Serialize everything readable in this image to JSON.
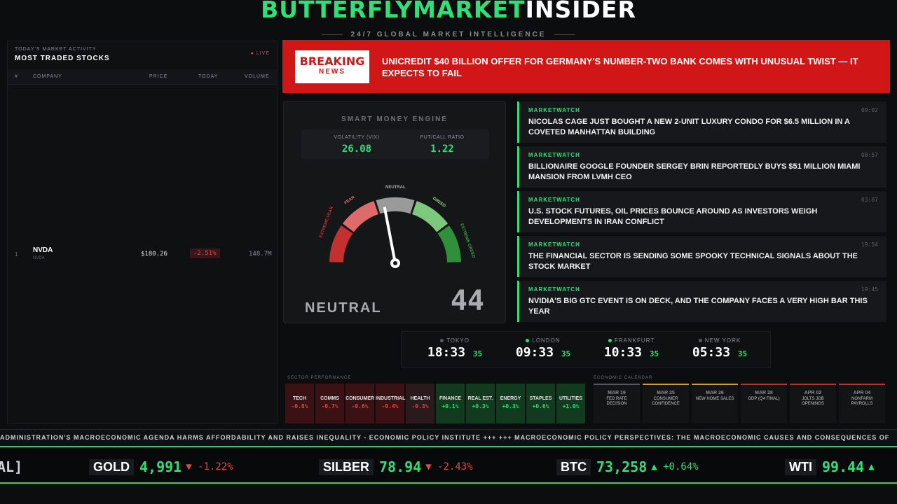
{
  "header": {
    "brand_green": "BUTTERFLYMARKET",
    "brand_white": "INSIDER",
    "tagline": "24/7 GLOBAL MARKET INTELLIGENCE"
  },
  "stocks_panel": {
    "subtitle": "TODAY'S MARKET ACTIVITY",
    "title": "MOST TRADED STOCKS",
    "live_label": "● LIVE",
    "columns": [
      "#",
      "COMPANY",
      "PRICE",
      "TODAY",
      "VOLUME"
    ],
    "rows": [
      {
        "rank": "1",
        "symbol": "NVDA",
        "name": "NVDA",
        "price": "$180.26",
        "change": "-2.51%",
        "volume": "148.7M"
      }
    ]
  },
  "breaking": {
    "badge_top": "BREAKING",
    "badge_bottom": "NEWS",
    "headline": "UNICREDIT $40 BILLION OFFER FOR GERMANY'S NUMBER-TWO BANK COMES WITH UNUSUAL TWIST — IT EXPECTS TO FAIL"
  },
  "engine": {
    "title": "SMART MONEY ENGINE",
    "vix_label": "VOLATILITY (VIX)",
    "vix_value": "26.08",
    "pcr_label": "PUT/CALL RATIO",
    "pcr_value": "1.22",
    "gauge_labels": {
      "extreme_fear": "EXTREME FEAR",
      "fear": "FEAR",
      "neutral": "NEUTRAL",
      "greed": "GREED",
      "extreme_greed": "EXTREME GREED"
    },
    "gauge_value": 44,
    "mood": "NEUTRAL",
    "score": "44"
  },
  "news": [
    {
      "source": "MARKETWATCH",
      "time": "09:02",
      "headline": "NICOLAS CAGE JUST BOUGHT A NEW 2-UNIT LUXURY CONDO FOR $6.5 MILLION IN A COVETED MANHATTAN BUILDING"
    },
    {
      "source": "MARKETWATCH",
      "time": "08:57",
      "headline": "BILLIONAIRE GOOGLE FOUNDER SERGEY BRIN REPORTEDLY BUYS $51 MILLION MIAMI MANSION FROM LVMH CEO"
    },
    {
      "source": "MARKETWATCH",
      "time": "03:07",
      "headline": "U.S. STOCK FUTURES, OIL PRICES BOUNCE AROUND AS INVESTORS WEIGH DEVELOPMENTS IN IRAN CONFLICT"
    },
    {
      "source": "MARKETWATCH",
      "time": "19:54",
      "headline": "THE FINANCIAL SECTOR IS SENDING SOME SPOOKY TECHNICAL SIGNALS ABOUT THE STOCK MARKET"
    },
    {
      "source": "MARKETWATCH",
      "time": "19:45",
      "headline": "NVIDIA'S BIG GTC EVENT IS ON DECK, AND THE COMPANY FACES A VERY HIGH BAR THIS YEAR"
    }
  ],
  "clocks": [
    {
      "city": "TOKYO",
      "time": "18:33",
      "sec": "35",
      "open": false
    },
    {
      "city": "LONDON",
      "time": "09:33",
      "sec": "35",
      "open": true
    },
    {
      "city": "FRANKFURT",
      "time": "10:33",
      "sec": "35",
      "open": true
    },
    {
      "city": "NEW YORK",
      "time": "05:33",
      "sec": "35",
      "open": false
    }
  ],
  "sectors": {
    "label": "SECTOR PERFORMANCE",
    "items": [
      {
        "name": "TECH",
        "value": "-0.8%"
      },
      {
        "name": "COMMS",
        "value": "-0.7%"
      },
      {
        "name": "CONSUMER",
        "value": "-0.6%"
      },
      {
        "name": "INDUSTRIAL",
        "value": "-0.4%"
      },
      {
        "name": "HEALTH",
        "value": "-0.3%"
      },
      {
        "name": "FINANCE",
        "value": "+0.1%"
      },
      {
        "name": "REAL EST.",
        "value": "+0.3%"
      },
      {
        "name": "ENERGY",
        "value": "+0.3%"
      },
      {
        "name": "STAPLES",
        "value": "+0.6%"
      },
      {
        "name": "UTILITIES",
        "value": "+1.0%"
      }
    ]
  },
  "calendar": {
    "label": "ECONOMIC CALENDAR",
    "items": [
      {
        "date": "MAR 19",
        "event": "FED RATE DECISION",
        "color": "#555a60"
      },
      {
        "date": "MAR 25",
        "event": "CONSUMER CONFIDENCE",
        "color": "#d39a2c"
      },
      {
        "date": "MAR 26",
        "event": "NEW HOME SALES",
        "color": "#d39a2c"
      },
      {
        "date": "MAR 28",
        "event": "GDP (Q4 FINAL)",
        "color": "#c03030"
      },
      {
        "date": "APR 02",
        "event": "JOLTS JOB OPENINGS",
        "color": "#c03030"
      },
      {
        "date": "APR 04",
        "event": "NONFARM PAYROLLS",
        "color": "#c03030"
      }
    ]
  },
  "marquee": "ADMINISTRATION'S MACROECONOMIC AGENDA HARMS AFFORDABILITY AND RAISES INEQUALITY - ECONOMIC POLICY INSTITUTE +++ +++ MACROECONOMIC POLICY PERSPECTIVES: THE MACROECONOMIC CAUSES AND CONSEQUENCES OF",
  "tickers": {
    "partial": "AL]",
    "items": [
      {
        "symbol": "GOLD",
        "price": "4,991",
        "change": "▼ -1.22%",
        "up": false
      },
      {
        "symbol": "SILBER",
        "price": "78.94",
        "change": "▼ -2.43%",
        "up": false
      },
      {
        "symbol": "BTC",
        "price": "73,258",
        "change": "▲ +0.64%",
        "up": true
      },
      {
        "symbol": "WTI",
        "price": "99.44",
        "change": "▲",
        "up": true
      }
    ]
  },
  "colors": {
    "accent": "#2fe07a",
    "breaking": "#d01616",
    "negative": "#e04848",
    "positive": "#2fe07a"
  }
}
